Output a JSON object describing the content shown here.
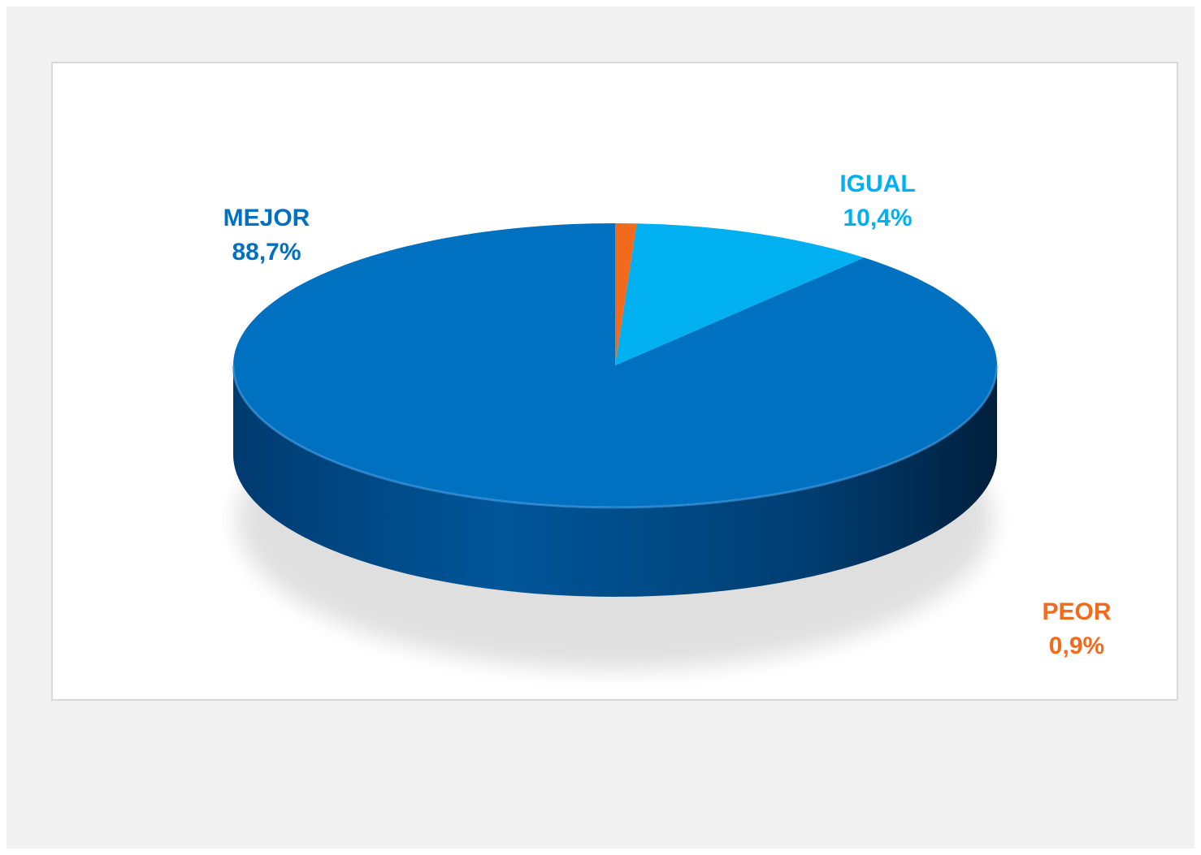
{
  "chart_data": {
    "type": "pie",
    "style": "3d",
    "slices": [
      {
        "label": "MEJOR",
        "value": 88.7,
        "value_label": "88,7%",
        "color": "#0070c0"
      },
      {
        "label": "IGUAL",
        "value": 10.4,
        "value_label": "10,4%",
        "color": "#00b0f0"
      },
      {
        "label": "PEOR",
        "value": 0.9,
        "value_label": "0,9%",
        "color": "#f26a1b"
      }
    ],
    "data_labels": "outside, category and percent"
  },
  "colors": {
    "panel_background": "#f1f1f1",
    "chart_background": "#ffffff",
    "chart_border": "#d9d9d9",
    "mejor_side_dark": "#002a50"
  }
}
